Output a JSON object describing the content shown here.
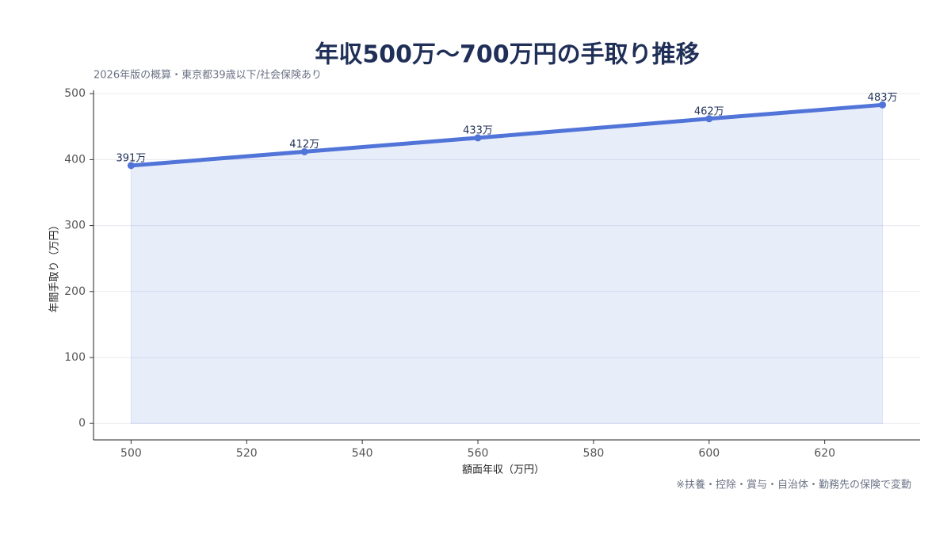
{
  "chart_data": {
    "type": "line",
    "title": "年収500万〜700万円の手取り推移",
    "subtitle": "2026年版の概算・東京都39歳以下/社会保険あり",
    "note": "※扶養・控除・賞与・自治体・勤務先の保険で変動",
    "xlabel": "額面年収（万円）",
    "ylabel": "年間手取り（万円）",
    "x": [
      500,
      530,
      560,
      600,
      630
    ],
    "series": [
      {
        "name": "年間手取り",
        "color": "#5174d8",
        "values": [
          391,
          412,
          433,
          462,
          483
        ],
        "value_labels": [
          "391万",
          "412万",
          "433万",
          "462万",
          "483万"
        ]
      }
    ],
    "xlim": [
      493.5,
      636.5
    ],
    "xticks": [
      500,
      520,
      540,
      560,
      580,
      600,
      620
    ],
    "ylim": [
      -25,
      505
    ],
    "yticks": [
      0,
      100,
      200,
      300,
      400,
      500
    ],
    "grid": true,
    "area": true
  }
}
